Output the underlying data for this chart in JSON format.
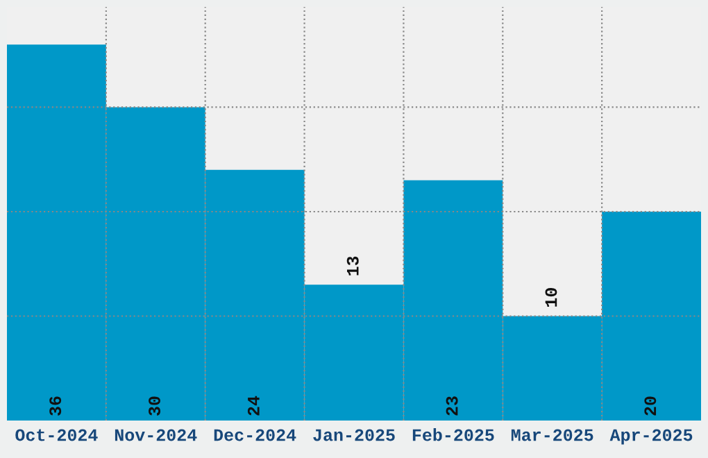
{
  "chart_data": {
    "type": "bar",
    "categories": [
      "Oct-2024",
      "Nov-2024",
      "Dec-2024",
      "Jan-2025",
      "Feb-2025",
      "Mar-2025",
      "Apr-2025"
    ],
    "values": [
      36,
      30,
      24,
      13,
      23,
      10,
      20
    ],
    "color": "#0098c8",
    "data_labels": true,
    "ylim": [
      0,
      39.6
    ],
    "yticks": [
      {
        "value": 10,
        "label": null
      },
      {
        "value": 20,
        "label": null
      },
      {
        "value": 30,
        "label": null
      }
    ],
    "grid": true,
    "tick_labels": "x"
  }
}
